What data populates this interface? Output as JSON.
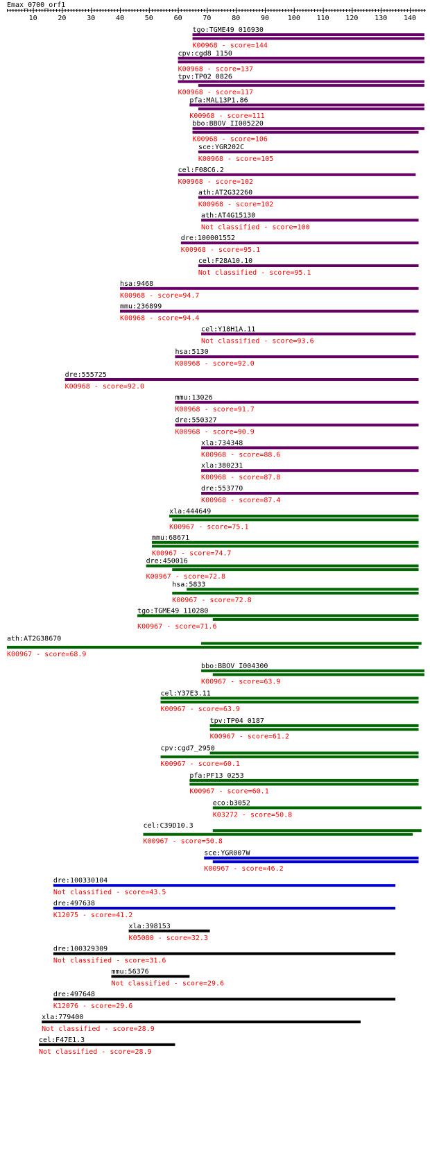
{
  "query": "Emax_0700_orf1",
  "ruler": {
    "min": 1,
    "max": 145,
    "ticks": [
      10,
      20,
      30,
      40,
      50,
      60,
      70,
      80,
      90,
      100,
      110,
      120,
      130,
      140
    ]
  },
  "colors": {
    "purple": "#660066",
    "green": "#006600",
    "blue": "#0000cc",
    "black": "#000000",
    "label": "#000000",
    "sublabel": "#ff0000"
  },
  "hits": [
    {
      "name": "tgo:TGME49_016930",
      "ko": "K00968",
      "score": "144",
      "color": "purple",
      "bars": [
        [
          65,
          145
        ],
        [
          65,
          145
        ]
      ]
    },
    {
      "name": "cpv:cgd8_1150",
      "ko": "K00968",
      "score": "137",
      "color": "purple",
      "bars": [
        [
          60,
          145
        ],
        [
          60,
          145
        ]
      ]
    },
    {
      "name": "tpv:TP02_0826",
      "ko": "K00968",
      "score": "117",
      "color": "purple",
      "bars": [
        [
          60,
          145
        ],
        [
          67,
          145
        ]
      ]
    },
    {
      "name": "pfa:MAL13P1.86",
      "ko": "K00968",
      "score": "111",
      "color": "purple",
      "bars": [
        [
          64,
          145
        ],
        [
          67,
          145
        ]
      ]
    },
    {
      "name": "bbo:BBOV_II005220",
      "ko": "K00968",
      "score": "106",
      "color": "purple",
      "bars": [
        [
          65,
          145
        ],
        [
          65,
          143
        ]
      ]
    },
    {
      "name": "sce:YGR202C",
      "ko": "K00968",
      "score": "105",
      "color": "purple",
      "bars": [
        [
          67,
          143
        ]
      ]
    },
    {
      "name": "cel:F08C6.2",
      "ko": "K00968",
      "score": "102",
      "color": "purple",
      "bars": [
        [
          60,
          142
        ]
      ]
    },
    {
      "name": "ath:AT2G32260",
      "ko": "K00968",
      "score": "102",
      "color": "purple",
      "bars": [
        [
          67,
          143
        ]
      ]
    },
    {
      "name": "ath:AT4G15130",
      "ko": "Not classified",
      "score": "100",
      "color": "purple",
      "bars": [
        [
          68,
          143
        ]
      ]
    },
    {
      "name": "dre:100001552",
      "ko": "K00968",
      "score": "95.1",
      "color": "purple",
      "bars": [
        [
          61,
          143
        ]
      ]
    },
    {
      "name": "cel:F28A10.10",
      "ko": "Not classified",
      "score": "95.1",
      "color": "purple",
      "bars": [
        [
          67,
          143
        ]
      ]
    },
    {
      "name": "hsa:9468",
      "ko": "K00968",
      "score": "94.7",
      "color": "purple",
      "bars": [
        [
          40,
          143
        ]
      ]
    },
    {
      "name": "mmu:236899",
      "ko": "K00968",
      "score": "94.4",
      "color": "purple",
      "bars": [
        [
          40,
          143
        ]
      ]
    },
    {
      "name": "cel:Y18H1A.11",
      "ko": "Not classified",
      "score": "93.6",
      "color": "purple",
      "bars": [
        [
          68,
          142
        ]
      ]
    },
    {
      "name": "hsa:5130",
      "ko": "K00968",
      "score": "92.0",
      "color": "purple",
      "bars": [
        [
          59,
          143
        ]
      ]
    },
    {
      "name": "dre:555725",
      "ko": "K00968",
      "score": "92.0",
      "color": "purple",
      "bars": [
        [
          21,
          143
        ]
      ]
    },
    {
      "name": "mmu:13026",
      "ko": "K00968",
      "score": "91.7",
      "color": "purple",
      "bars": [
        [
          59,
          143
        ]
      ]
    },
    {
      "name": "dre:550327",
      "ko": "K00968",
      "score": "90.9",
      "color": "purple",
      "bars": [
        [
          59,
          143
        ]
      ]
    },
    {
      "name": "xla:734348",
      "ko": "K00968",
      "score": "88.6",
      "color": "purple",
      "bars": [
        [
          68,
          143
        ]
      ]
    },
    {
      "name": "xla:380231",
      "ko": "K00968",
      "score": "87.8",
      "color": "purple",
      "bars": [
        [
          68,
          143
        ]
      ]
    },
    {
      "name": "dre:553770",
      "ko": "K00968",
      "score": "87.4",
      "color": "purple",
      "bars": [
        [
          68,
          143
        ]
      ]
    },
    {
      "name": "xla:444649",
      "ko": "K00967",
      "score": "75.1",
      "color": "green",
      "bars": [
        [
          57,
          143
        ],
        [
          58,
          143
        ]
      ]
    },
    {
      "name": "mmu:68671",
      "ko": "K00967",
      "score": "74.7",
      "color": "green",
      "bars": [
        [
          51,
          143
        ],
        [
          51,
          143
        ]
      ]
    },
    {
      "name": "dre:450016",
      "ko": "K00967",
      "score": "72.8",
      "color": "green",
      "bars": [
        [
          49,
          143
        ],
        [
          58,
          143
        ]
      ]
    },
    {
      "name": "hsa:5833",
      "ko": "K00967",
      "score": "72.8",
      "color": "green",
      "bars": [
        [
          63,
          143
        ],
        [
          58,
          143
        ]
      ]
    },
    {
      "name": "tgo:TGME49_110280",
      "ko": "K00967",
      "score": "71.6",
      "color": "green",
      "bars": [
        [
          46,
          143
        ],
        [
          72,
          143
        ]
      ]
    },
    {
      "name": "ath:AT2G38670",
      "ko": "K00967",
      "score": "68.9",
      "color": "green",
      "bars": [
        [
          68,
          144
        ],
        [
          1,
          143
        ]
      ]
    },
    {
      "name": "bbo:BBOV_I004300",
      "ko": "K00967",
      "score": "63.9",
      "color": "green",
      "bars": [
        [
          68,
          145
        ],
        [
          72,
          145
        ]
      ]
    },
    {
      "name": "cel:Y37E3.11",
      "ko": "K00967",
      "score": "63.9",
      "color": "green",
      "bars": [
        [
          54,
          143
        ],
        [
          54,
          143
        ]
      ]
    },
    {
      "name": "tpv:TP04_0187",
      "ko": "K00967",
      "score": "61.2",
      "color": "green",
      "bars": [
        [
          71,
          143
        ],
        [
          71,
          143
        ]
      ]
    },
    {
      "name": "cpv:cgd7_2950",
      "ko": "K00967",
      "score": "60.1",
      "color": "green",
      "bars": [
        [
          71,
          143
        ],
        [
          54,
          143
        ]
      ]
    },
    {
      "name": "pfa:PF13_0253",
      "ko": "K00967",
      "score": "60.1",
      "color": "green",
      "bars": [
        [
          64,
          143
        ],
        [
          64,
          143
        ]
      ]
    },
    {
      "name": "eco:b3052",
      "ko": "K03272",
      "score": "50.8",
      "color": "green",
      "bars": [
        [
          72,
          144
        ]
      ]
    },
    {
      "name": "cel:C39D10.3",
      "ko": "K00967",
      "score": "50.8",
      "color": "green",
      "bars": [
        [
          72,
          144
        ],
        [
          48,
          141
        ]
      ]
    },
    {
      "name": "sce:YGR007W",
      "ko": "K00967",
      "score": "46.2",
      "color": "blue",
      "bars": [
        [
          69,
          143
        ],
        [
          72,
          143
        ]
      ]
    },
    {
      "name": "dre:100330104",
      "ko": "Not classified",
      "score": "43.5",
      "color": "blue",
      "bars": [
        [
          17,
          135
        ]
      ]
    },
    {
      "name": "dre:497638",
      "ko": "K12075",
      "score": "41.2",
      "color": "blue",
      "bars": [
        [
          17,
          135
        ]
      ]
    },
    {
      "name": "xla:398153",
      "ko": "K05080",
      "score": "32.3",
      "color": "black",
      "bars": [
        [
          43,
          71
        ]
      ]
    },
    {
      "name": "dre:100329309",
      "ko": "Not classified",
      "score": "31.6",
      "color": "black",
      "bars": [
        [
          17,
          135
        ]
      ]
    },
    {
      "name": "mmu:56376",
      "ko": "Not classified",
      "score": "29.6",
      "color": "black",
      "bars": [
        [
          37,
          64
        ]
      ]
    },
    {
      "name": "dre:497648",
      "ko": "K12076",
      "score": "29.6",
      "color": "black",
      "bars": [
        [
          17,
          135
        ]
      ]
    },
    {
      "name": "xla:779400",
      "ko": "Not classified",
      "score": "28.9",
      "color": "black",
      "bars": [
        [
          13,
          123
        ]
      ]
    },
    {
      "name": "cel:F47E1.3",
      "ko": "Not classified",
      "score": "28.9",
      "color": "black",
      "bars": [
        [
          12,
          59
        ]
      ]
    }
  ]
}
